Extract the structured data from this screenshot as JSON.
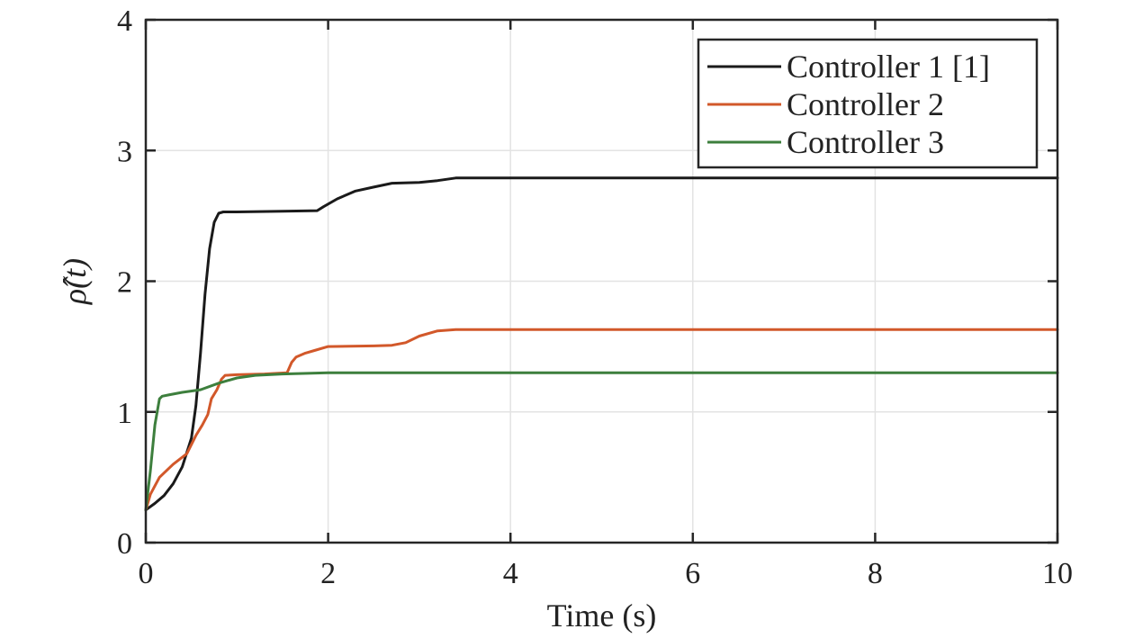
{
  "chart_data": {
    "type": "line",
    "title": "",
    "xlabel": "Time (s)",
    "ylabel": "ρ̂(t)",
    "xlim": [
      0,
      10
    ],
    "ylim": [
      0,
      4
    ],
    "xticks": [
      0,
      2,
      4,
      6,
      8,
      10
    ],
    "yticks": [
      0,
      1,
      2,
      3,
      4
    ],
    "xtick_labels": [
      "0",
      "2",
      "4",
      "6",
      "8",
      "10"
    ],
    "ytick_labels": [
      "0",
      "1",
      "2",
      "3",
      "4"
    ],
    "grid": true,
    "legend_position": "top-right",
    "series": [
      {
        "name": "Controller 1 [1]",
        "color": "#1a1a1a",
        "x": [
          0,
          0.1,
          0.2,
          0.3,
          0.4,
          0.5,
          0.55,
          0.6,
          0.65,
          0.7,
          0.75,
          0.8,
          0.85,
          0.9,
          1.0,
          1.5,
          1.88,
          1.95,
          2.1,
          2.3,
          2.5,
          2.7,
          3.0,
          3.2,
          3.4,
          3.6,
          10
        ],
        "y": [
          0.25,
          0.3,
          0.36,
          0.45,
          0.58,
          0.8,
          1.05,
          1.45,
          1.9,
          2.25,
          2.45,
          2.52,
          2.53,
          2.53,
          2.53,
          2.535,
          2.54,
          2.57,
          2.63,
          2.69,
          2.72,
          2.75,
          2.755,
          2.77,
          2.79,
          2.79,
          2.79
        ]
      },
      {
        "name": "Controller 2",
        "color": "#d2582a",
        "x": [
          0,
          0.05,
          0.15,
          0.3,
          0.45,
          0.55,
          0.62,
          0.68,
          0.72,
          0.78,
          0.83,
          0.87,
          1.0,
          1.3,
          1.55,
          1.6,
          1.65,
          1.75,
          1.85,
          2.0,
          2.5,
          2.7,
          2.85,
          3.0,
          3.2,
          3.4,
          10
        ],
        "y": [
          0.25,
          0.37,
          0.5,
          0.6,
          0.68,
          0.82,
          0.9,
          0.98,
          1.1,
          1.17,
          1.25,
          1.28,
          1.285,
          1.29,
          1.3,
          1.38,
          1.42,
          1.45,
          1.47,
          1.5,
          1.505,
          1.51,
          1.53,
          1.58,
          1.62,
          1.63,
          1.63
        ]
      },
      {
        "name": "Controller 3",
        "color": "#3d7f3d",
        "x": [
          0,
          0.05,
          0.1,
          0.15,
          0.18,
          0.25,
          0.4,
          0.6,
          0.8,
          1.0,
          1.2,
          1.5,
          2.0,
          3.0,
          10
        ],
        "y": [
          0.25,
          0.55,
          0.9,
          1.1,
          1.12,
          1.13,
          1.15,
          1.17,
          1.22,
          1.26,
          1.28,
          1.29,
          1.3,
          1.3,
          1.3
        ]
      }
    ]
  }
}
